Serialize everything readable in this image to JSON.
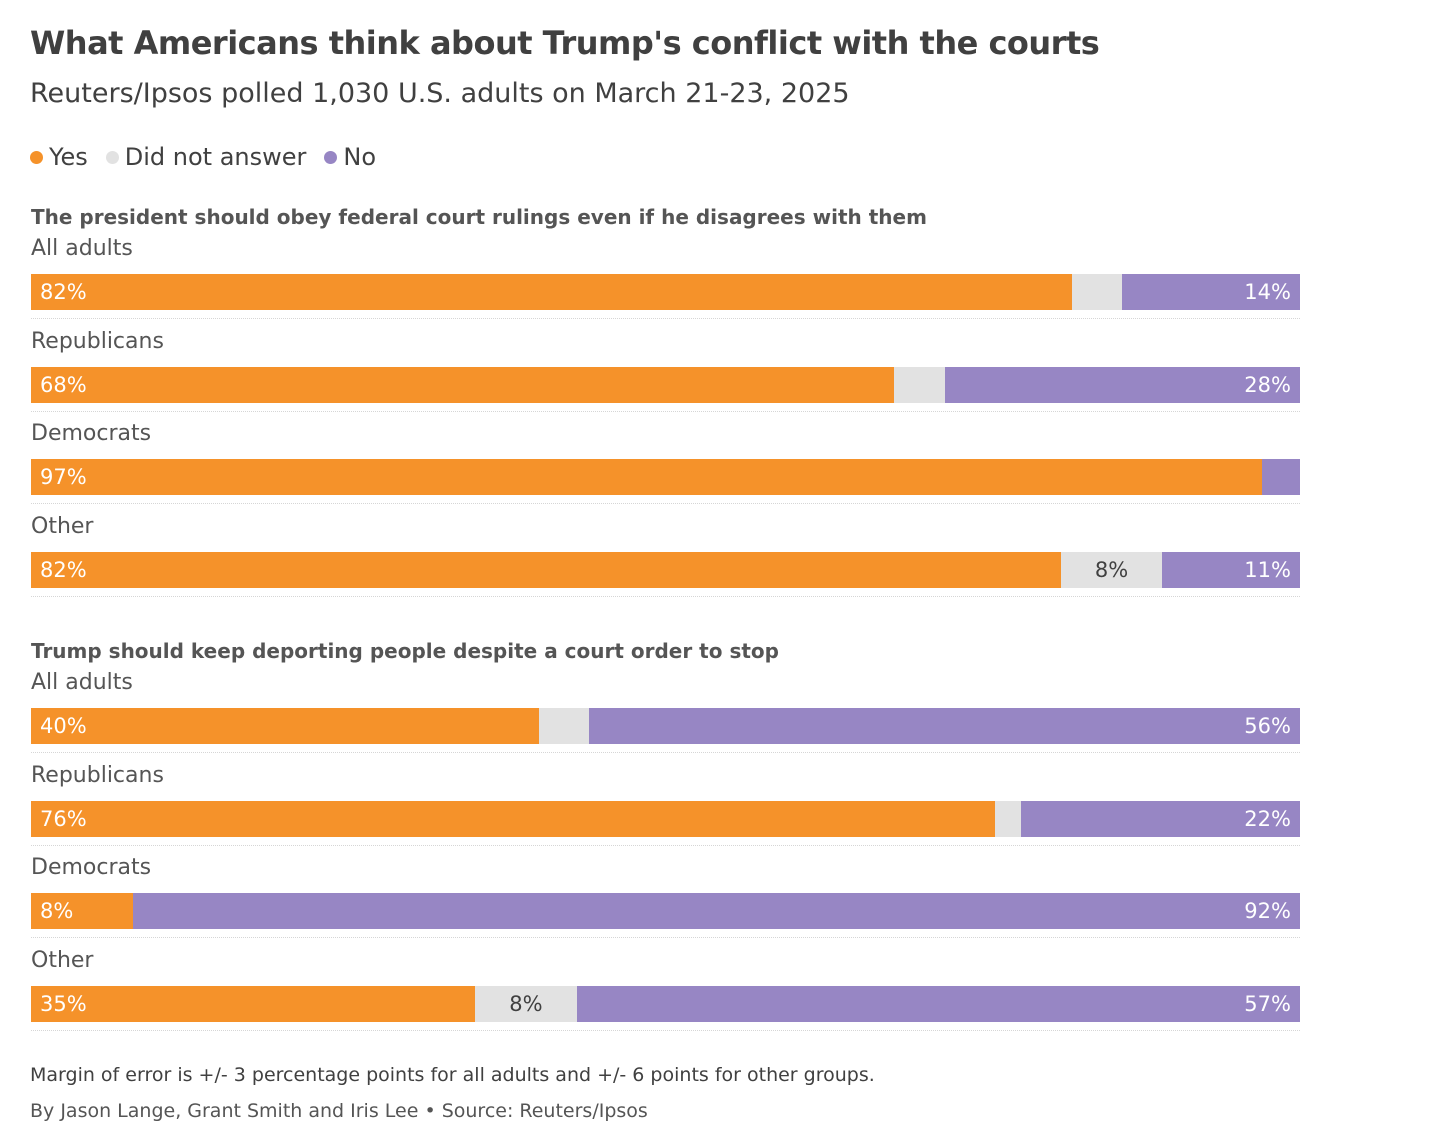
{
  "chart_data": {
    "type": "bar",
    "stacked": true,
    "orientation": "horizontal",
    "title": "What Americans think about Trump's conflict with the courts",
    "subtitle": "Reuters/Ipsos polled 1,030 U.S. adults on March 21-23, 2025",
    "legend": [
      {
        "name": "Yes",
        "color": "#f5922a"
      },
      {
        "name": "Did not answer",
        "color": "#e2e2e2"
      },
      {
        "name": "No",
        "color": "#9786c4"
      }
    ],
    "legend_position": "top-left",
    "xlim": [
      0,
      100
    ],
    "panels": [
      {
        "title": "The president should obey federal court rulings even if he disagrees with them",
        "groups": [
          {
            "label": "All adults",
            "yes": 82,
            "na": 4,
            "no": 14,
            "yes_label": "82%",
            "na_label": "",
            "no_label": "14%"
          },
          {
            "label": "Republicans",
            "yes": 68,
            "na": 4,
            "no": 28,
            "yes_label": "68%",
            "na_label": "",
            "no_label": "28%"
          },
          {
            "label": "Democrats",
            "yes": 97,
            "na": 0,
            "no": 3,
            "yes_label": "97%",
            "na_label": "",
            "no_label": ""
          },
          {
            "label": "Other",
            "yes": 82,
            "na": 8,
            "no": 11,
            "yes_label": "82%",
            "na_label": "8%",
            "no_label": "11%"
          }
        ]
      },
      {
        "title": "Trump should keep deporting people despite a court order to stop",
        "groups": [
          {
            "label": "All adults",
            "yes": 40,
            "na": 4,
            "no": 56,
            "yes_label": "40%",
            "na_label": "",
            "no_label": "56%"
          },
          {
            "label": "Republicans",
            "yes": 76,
            "na": 2,
            "no": 22,
            "yes_label": "76%",
            "na_label": "",
            "no_label": "22%"
          },
          {
            "label": "Democrats",
            "yes": 8,
            "na": 0,
            "no": 92,
            "yes_label": "8%",
            "na_label": "",
            "no_label": "92%"
          },
          {
            "label": "Other",
            "yes": 35,
            "na": 8,
            "no": 57,
            "yes_label": "35%",
            "na_label": "8%",
            "no_label": "57%"
          }
        ]
      }
    ],
    "note": "Margin of error is +/- 3 percentage points for all adults and +/- 6 points for other groups.",
    "credit": "By Jason Lange, Grant Smith and Iris Lee • Source: Reuters/Ipsos"
  }
}
